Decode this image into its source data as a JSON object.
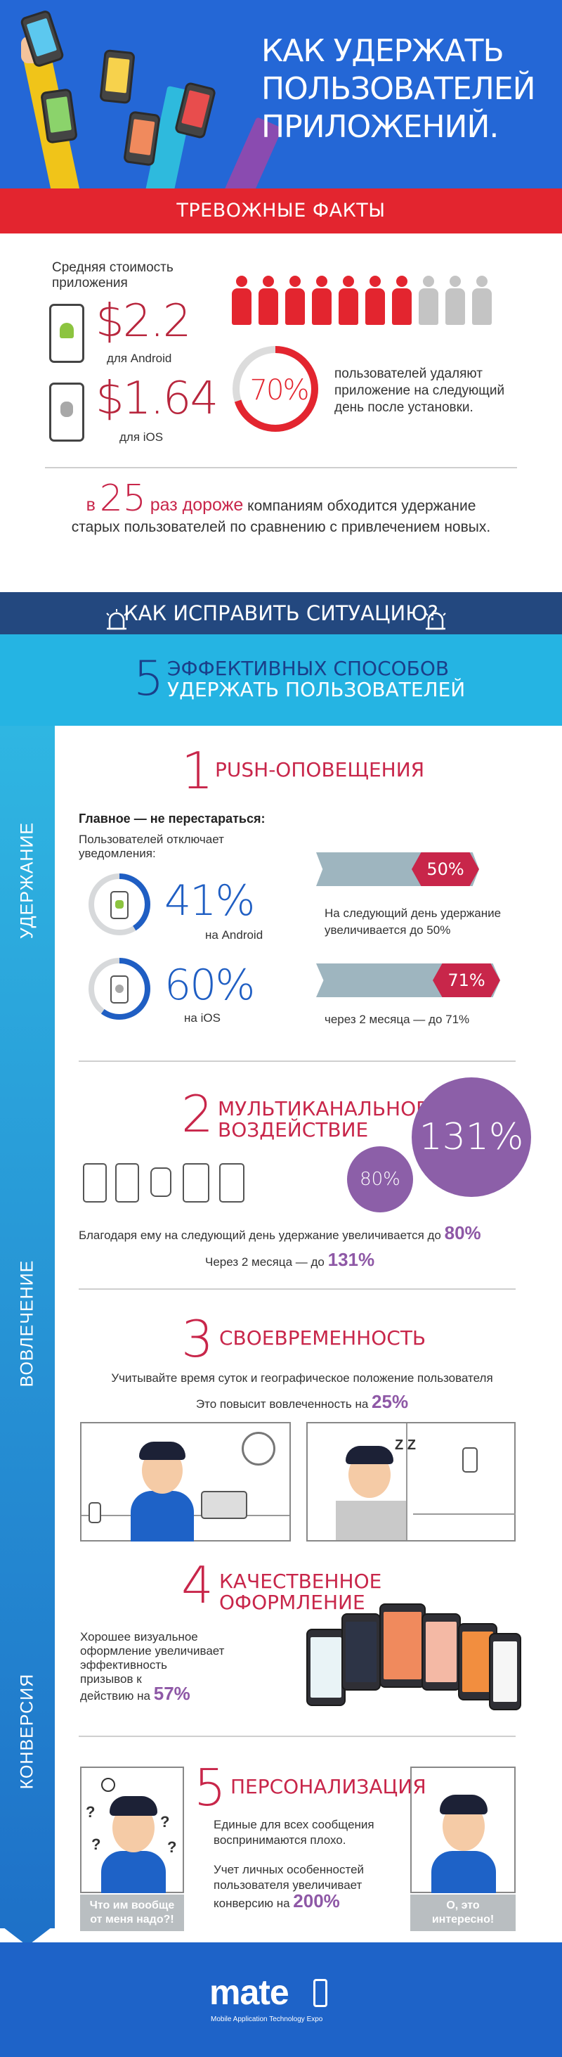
{
  "header": {
    "title_lines": [
      "КАК УДЕРЖАТЬ",
      "ПОЛЬЗОВАТЕЛЕЙ",
      "ПРИЛОЖЕНИЙ."
    ]
  },
  "alarming_facts": {
    "band_title": "ТРЕВОЖНЫЕ ФАКТЫ",
    "cost_label_line1": "Средняя стоимость",
    "cost_label_line2": "приложения",
    "android_price": "$2.2",
    "android_label": "для Android",
    "ios_price": "$1.64",
    "ios_label": "для iOS",
    "people_total": 10,
    "people_highlighted": 7,
    "uninstall_percent": "70%",
    "uninstall_percent_value": 70,
    "uninstall_text_lines": [
      "пользователей удаляют",
      "приложение на следующий",
      "день после установки."
    ],
    "retention_prefix": "в",
    "retention_multiplier": "25",
    "retention_highlight": "раз дороже",
    "retention_line1_rest": "компаниям обходится удержание",
    "retention_line2": "старых пользователей  по сравнению с привлечением новых."
  },
  "fix_band": {
    "title": "КАК ИСПРАВИТЬ СИТУАЦИЮ?"
  },
  "ways_band": {
    "number": "5",
    "line1": "ЭФФЕКТИВНЫХ СПОСОБОВ",
    "line2": "УДЕРЖАТЬ ПОЛЬЗОВАТЕЛЕЙ"
  },
  "sidebar": {
    "labels": [
      "УДЕРЖАНИЕ",
      "ВОВЛЕЧЕНИЕ",
      "КОНВЕРСИЯ"
    ]
  },
  "way1": {
    "number": "1",
    "title": "PUSH-ОПОВЕЩЕНИЯ",
    "subhead": "Главное — не перестараться:",
    "disable_text_line1": "Пользователей отключает",
    "disable_text_line2": "уведомления:",
    "android_pct": "41%",
    "android_pct_value": 41,
    "android_label": "на Android",
    "ios_pct": "60%",
    "ios_pct_value": 60,
    "ios_label": "на iOS",
    "bar1_tag": "50%",
    "bar1_text_line1": "На следующий день удержание",
    "bar1_text_line2": "увеличивается до 50%",
    "bar2_tag": "71%",
    "bar2_text": "через 2 месяца — до 71%"
  },
  "way2": {
    "number": "2",
    "title_line1": "МУЛЬТИКАНАЛЬНОЕ",
    "title_line2": "ВОЗДЕЙСТВИЕ",
    "big_circle": "131%",
    "small_circle": "80%",
    "text1_prefix": "Благодаря ему на следующий день удержание увеличивается до",
    "text1_value": "80%",
    "text2_prefix": "Через 2 месяца — до",
    "text2_value": "131%"
  },
  "way3": {
    "number": "3",
    "title": "СВОЕВРЕМЕННОСТЬ",
    "text1": "Учитывайте время суток и географическое положение пользователя",
    "text2_prefix": "Это повысит вовлеченность на",
    "text2_value": "25%",
    "zzz": "Z Z"
  },
  "way4": {
    "number": "4",
    "title_line1": "КАЧЕСТВЕННОЕ",
    "title_line2": "ОФОРМЛЕНИЕ",
    "text_lines": [
      "Хорошее визуальное",
      "оформление увеличивает",
      "эффективность",
      "призывов к"
    ],
    "text_last_prefix": "действию на",
    "text_value": "57%"
  },
  "way5": {
    "number": "5",
    "title": "ПЕРСОНАЛИЗАЦИЯ",
    "text1_line1": "Единые для всех сообщения",
    "text1_line2": "воспринимаются плохо.",
    "text2_line1": "Учет личных особенностей",
    "text2_line2": "пользователя увеличивает",
    "text2_prefix": "конверсию на",
    "text2_value": "200%",
    "caption_left_line1": "Что им вообще",
    "caption_left_line2": "от меня надо?!",
    "caption_right_line1": "О, это",
    "caption_right_line2": "интересно!"
  },
  "footer": {
    "logo": "mate",
    "logo_subtitle": "Mobile Application Technology Expo"
  },
  "colors": {
    "header_blue": "#2467d6",
    "alert_red": "#e3252f",
    "accent_red": "#c8264a",
    "dark_blue": "#23487f",
    "cyan": "#25b4e3",
    "purple": "#8c5fa8",
    "gray": "#b9bec1"
  }
}
